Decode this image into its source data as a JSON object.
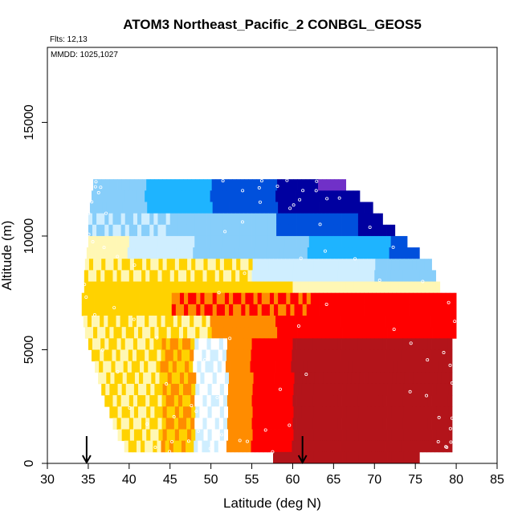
{
  "chart_data": {
    "type": "heatmap",
    "title": "ATOM3 Northeast_Pacific_2 CONBGL_GEOS5",
    "annotations": [
      "Flts: 12,13",
      "MMDD: 1025,1027"
    ],
    "xlabel": "Latitude (deg N)",
    "ylabel": "Altitude (m)",
    "xlim": [
      30,
      85
    ],
    "ylim": [
      0,
      18300
    ],
    "x_ticks": [
      "30",
      "35",
      "40",
      "45",
      "50",
      "55",
      "60",
      "65",
      "70",
      "75",
      "80",
      "85"
    ],
    "y_ticks": [
      "0",
      "5000",
      "10000",
      "15000"
    ],
    "grid": false,
    "legend": "none",
    "markers": [
      34.8,
      61.2
    ],
    "colors": {
      "darkred": "#b3141a",
      "red": "#ff0000",
      "orange": "#ff8c00",
      "gold": "#ffd200",
      "pale_yellow": "#fff7b5",
      "white": "#ffffff",
      "pale_blue": "#cfeeff",
      "light_blue": "#87cefa",
      "sky_blue": "#1eb4ff",
      "blue": "#0050dc",
      "dark_blue": "#0000a0",
      "purple": "#7030c8"
    },
    "extent_rows": [
      {
        "altitude_lo": 12000,
        "altitude_hi": 12500,
        "lat_min": 35.6,
        "lat_max": 66.5
      },
      {
        "altitude_lo": 11500,
        "altitude_hi": 12000,
        "lat_min": 35.4,
        "lat_max": 68.2
      },
      {
        "altitude_lo": 11000,
        "altitude_hi": 11500,
        "lat_min": 35.2,
        "lat_max": 69.8
      },
      {
        "altitude_lo": 10500,
        "altitude_hi": 11000,
        "lat_min": 35.0,
        "lat_max": 71.0
      },
      {
        "altitude_lo": 10000,
        "altitude_hi": 10500,
        "lat_min": 35.0,
        "lat_max": 72.5
      },
      {
        "altitude_lo": 9500,
        "altitude_hi": 10000,
        "lat_min": 35.0,
        "lat_max": 74.0
      },
      {
        "altitude_lo": 9000,
        "altitude_hi": 9500,
        "lat_min": 34.8,
        "lat_max": 75.5
      },
      {
        "altitude_lo": 8500,
        "altitude_hi": 9000,
        "lat_min": 34.6,
        "lat_max": 77.0
      },
      {
        "altitude_lo": 8000,
        "altitude_hi": 8500,
        "lat_min": 34.5,
        "lat_max": 77.5
      },
      {
        "altitude_lo": 7500,
        "altitude_hi": 8000,
        "lat_min": 34.5,
        "lat_max": 78.0
      },
      {
        "altitude_lo": 7000,
        "altitude_hi": 7500,
        "lat_min": 34.2,
        "lat_max": 80.0
      },
      {
        "altitude_lo": 6500,
        "altitude_hi": 7000,
        "lat_min": 34.2,
        "lat_max": 80.0
      },
      {
        "altitude_lo": 6000,
        "altitude_hi": 6500,
        "lat_min": 34.4,
        "lat_max": 80.0
      },
      {
        "altitude_lo": 5500,
        "altitude_hi": 6000,
        "lat_min": 34.6,
        "lat_max": 80.0
      },
      {
        "altitude_lo": 5000,
        "altitude_hi": 5500,
        "lat_min": 35.0,
        "lat_max": 79.5
      },
      {
        "altitude_lo": 4500,
        "altitude_hi": 5000,
        "lat_min": 35.4,
        "lat_max": 79.5
      },
      {
        "altitude_lo": 4000,
        "altitude_hi": 4500,
        "lat_min": 35.8,
        "lat_max": 79.5
      },
      {
        "altitude_lo": 3500,
        "altitude_hi": 4000,
        "lat_min": 36.2,
        "lat_max": 79.5
      },
      {
        "altitude_lo": 3000,
        "altitude_hi": 3500,
        "lat_min": 36.6,
        "lat_max": 79.5
      },
      {
        "altitude_lo": 2500,
        "altitude_hi": 3000,
        "lat_min": 37.0,
        "lat_max": 79.5
      },
      {
        "altitude_lo": 2000,
        "altitude_hi": 2500,
        "lat_min": 37.6,
        "lat_max": 79.5
      },
      {
        "altitude_lo": 1500,
        "altitude_hi": 2000,
        "lat_min": 38.0,
        "lat_max": 79.5
      },
      {
        "altitude_lo": 1000,
        "altitude_hi": 1500,
        "lat_min": 38.6,
        "lat_max": 79.5
      },
      {
        "altitude_lo": 500,
        "altitude_hi": 1000,
        "lat_min": 39.4,
        "lat_max": 79.5
      },
      {
        "altitude_lo": 0,
        "altitude_hi": 500,
        "lat_min": 57.6,
        "lat_max": 75.5
      }
    ]
  }
}
